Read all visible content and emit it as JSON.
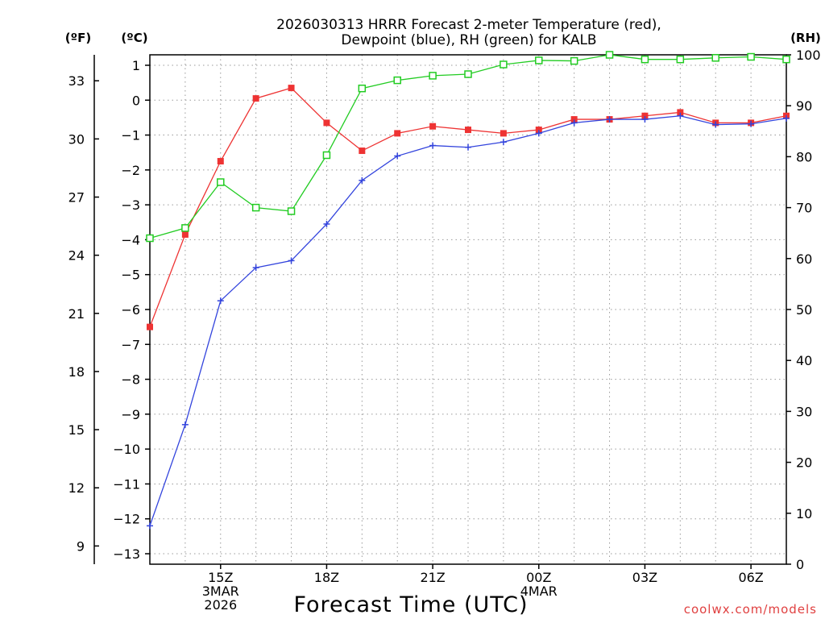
{
  "chart_data": {
    "type": "line",
    "title": [
      "2026030313 HRRR Forecast 2-meter Temperature (red),",
      "Dewpoint (blue), RH (green) for KALB"
    ],
    "xlabel": "Forecast Time (UTC)",
    "unit_f": "(ºF)",
    "unit_c": "(ºC)",
    "unit_rh": "(RH)",
    "watermark": "coolwx.com/models",
    "x_range": [
      13,
      31
    ],
    "x_ticks": [
      {
        "hour": 15,
        "lines": [
          "15Z",
          "3MAR",
          "2026"
        ]
      },
      {
        "hour": 18,
        "lines": [
          "18Z"
        ]
      },
      {
        "hour": 21,
        "lines": [
          "21Z"
        ]
      },
      {
        "hour": 24,
        "lines": [
          "00Z",
          "4MAR"
        ]
      },
      {
        "hour": 27,
        "lines": [
          "03Z"
        ]
      },
      {
        "hour": 30,
        "lines": [
          "06Z"
        ]
      }
    ],
    "c_range": [
      -13.3,
      1.3
    ],
    "c_ticks": [
      1,
      0,
      -1,
      -2,
      -3,
      -4,
      -5,
      -6,
      -7,
      -8,
      -9,
      -10,
      -11,
      -12,
      -13
    ],
    "c_tick_labels": [
      "1",
      "0",
      "−1",
      "−2",
      "−3",
      "−4",
      "−5",
      "−6",
      "−7",
      "−8",
      "−9",
      "−10",
      "−11",
      "−12",
      "−13"
    ],
    "f_ticks": [
      33,
      30,
      27,
      24,
      21,
      18,
      15,
      12,
      9
    ],
    "f_tick_labels": [
      "33",
      "30",
      "27",
      "24",
      "21",
      "18",
      "15",
      "12",
      "9"
    ],
    "rh_range": [
      0,
      100
    ],
    "rh_ticks": [
      100,
      90,
      80,
      70,
      60,
      50,
      40,
      30,
      20,
      10,
      0
    ],
    "rh_tick_labels": [
      "100",
      "90",
      "80",
      "70",
      "60",
      "50",
      "40",
      "30",
      "20",
      "10",
      "0"
    ],
    "x": [
      13,
      14,
      15,
      16,
      17,
      18,
      19,
      20,
      21,
      22,
      23,
      24,
      25,
      26,
      27,
      28,
      29,
      30,
      31
    ],
    "series": [
      {
        "name": "Temperature (°C)",
        "color": "#ee3333",
        "marker": "filled-square",
        "values": [
          -6.5,
          -3.85,
          -1.75,
          0.05,
          0.35,
          -0.65,
          -1.45,
          -0.95,
          -0.75,
          -0.85,
          -0.95,
          -0.85,
          -0.55,
          -0.55,
          -0.45,
          -0.35,
          -0.65,
          -0.65,
          -0.45
        ]
      },
      {
        "name": "Dewpoint (°C)",
        "color": "#3344dd",
        "marker": "plus",
        "values": [
          -12.2,
          -9.3,
          -5.75,
          -4.8,
          -4.6,
          -3.55,
          -2.3,
          -1.6,
          -1.3,
          -1.35,
          -1.2,
          -0.95,
          -0.65,
          -0.55,
          -0.55,
          -0.45,
          -0.7,
          -0.68,
          -0.52
        ]
      },
      {
        "name": "RH (%)",
        "color": "#22cc22",
        "marker": "open-square",
        "values": [
          64,
          66,
          75,
          70,
          69.3,
          80.3,
          93.4,
          95,
          95.9,
          96.2,
          98.1,
          98.9,
          98.8,
          100,
          99.1,
          99.1,
          99.4,
          99.6,
          99.1
        ]
      }
    ]
  }
}
